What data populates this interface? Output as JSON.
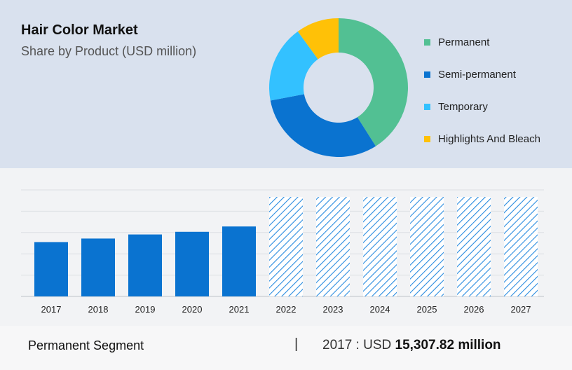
{
  "header": {
    "title": "Hair Color Market",
    "subtitle": "Share by Product (USD million)"
  },
  "chart_data": [
    {
      "type": "pie",
      "variant": "donut",
      "categories": [
        "Permanent",
        "Semi-permanent",
        "Temporary",
        "Highlights And Bleach"
      ],
      "values": [
        41,
        31,
        18,
        10
      ],
      "colors": [
        "#52c093",
        "#0a73d0",
        "#33c1ff",
        "#ffc107"
      ],
      "legend": "right"
    },
    {
      "type": "bar",
      "categories": [
        "2017",
        "2018",
        "2019",
        "2020",
        "2021",
        "2022",
        "2023",
        "2024",
        "2025",
        "2026",
        "2027"
      ],
      "values": [
        15307.82,
        16300,
        17450,
        18200,
        19700,
        null,
        null,
        null,
        null,
        null,
        null
      ],
      "forecast_categories": [
        "2022",
        "2023",
        "2024",
        "2025",
        "2026",
        "2027"
      ],
      "ylim": [
        0,
        30000
      ],
      "grid": true,
      "colors": {
        "actual": "#0a73d0",
        "forecast_hatch": "#2a8ce0"
      }
    }
  ],
  "footer": {
    "segment": "Permanent Segment",
    "divider": "|",
    "value_prefix": "2017 : USD",
    "value_number": "15,307.82 million"
  }
}
